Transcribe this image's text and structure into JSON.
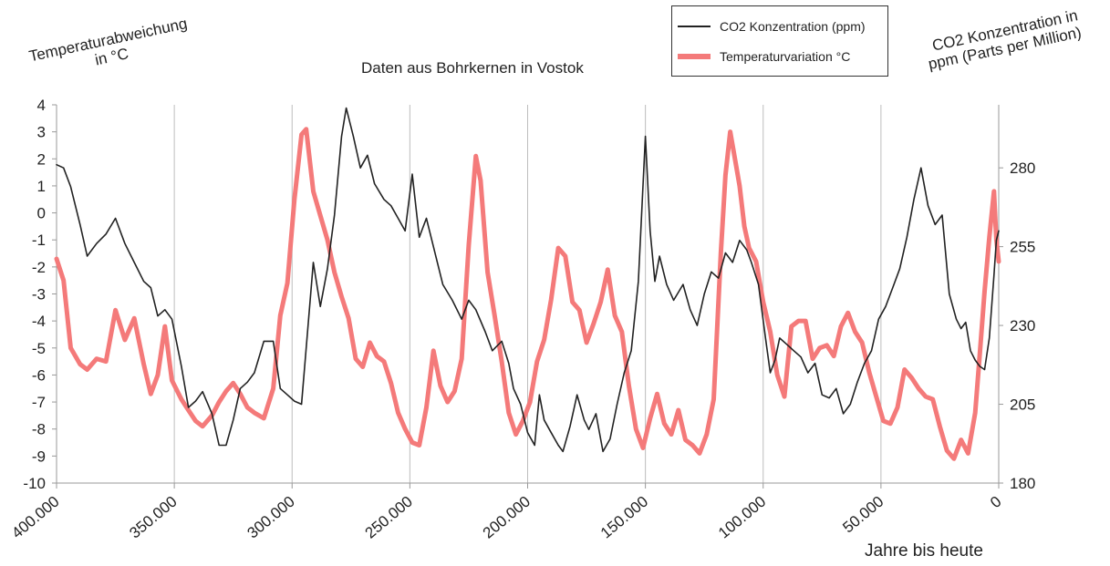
{
  "chart_data": {
    "type": "line",
    "title": "Daten aus Bohrkernen in Vostok",
    "ylabel_left": [
      "Temperaturabweichung",
      "in °C"
    ],
    "ylabel_right": [
      "CO2 Konzentration in",
      "ppm (Parts per Million)"
    ],
    "xlabel": "Jahre bis heute",
    "xlim": [
      400000,
      0
    ],
    "ylim_left": [
      -10,
      4
    ],
    "ylim_right": [
      180,
      300
    ],
    "x_ticks": [
      "400.000",
      "350.000",
      "300.000",
      "250.000",
      "200.000",
      "150.000",
      "100.000",
      "50.000",
      "0"
    ],
    "y_ticks_left": [
      "4",
      "3",
      "2",
      "1",
      "0",
      "-1",
      "-2",
      "-3",
      "-4",
      "-5",
      "-6",
      "-7",
      "-8",
      "-9",
      "-10"
    ],
    "y_ticks_right": [
      "280",
      "255",
      "230",
      "205",
      "180"
    ],
    "grid": true,
    "legend_position": "top-right",
    "series": [
      {
        "name": "CO2 Konzentration (ppm)",
        "axis": "right",
        "color": "#222222",
        "points": [
          [
            400000,
            281
          ],
          [
            397000,
            280
          ],
          [
            394000,
            274
          ],
          [
            390000,
            262
          ],
          [
            387000,
            252
          ],
          [
            383000,
            256
          ],
          [
            379000,
            259
          ],
          [
            375000,
            264
          ],
          [
            371000,
            256
          ],
          [
            367000,
            250
          ],
          [
            363000,
            244
          ],
          [
            360000,
            242
          ],
          [
            357000,
            233
          ],
          [
            354000,
            235
          ],
          [
            351000,
            232
          ],
          [
            347000,
            217
          ],
          [
            344000,
            204
          ],
          [
            341000,
            206
          ],
          [
            338000,
            209
          ],
          [
            334000,
            202
          ],
          [
            331000,
            192
          ],
          [
            328000,
            192
          ],
          [
            325000,
            200
          ],
          [
            322000,
            210
          ],
          [
            319000,
            212
          ],
          [
            316000,
            215
          ],
          [
            312000,
            225
          ],
          [
            308000,
            225
          ],
          [
            305000,
            210
          ],
          [
            302000,
            208
          ],
          [
            299000,
            206
          ],
          [
            296000,
            205
          ],
          [
            291000,
            250
          ],
          [
            288000,
            236
          ],
          [
            285000,
            248
          ],
          [
            282000,
            265
          ],
          [
            279000,
            290
          ],
          [
            277000,
            299
          ],
          [
            274000,
            290
          ],
          [
            271000,
            280
          ],
          [
            268000,
            284
          ],
          [
            265000,
            275
          ],
          [
            261000,
            270
          ],
          [
            258000,
            268
          ],
          [
            255000,
            264
          ],
          [
            252000,
            260
          ],
          [
            249000,
            278
          ],
          [
            246000,
            258
          ],
          [
            243000,
            264
          ],
          [
            240000,
            255
          ],
          [
            236000,
            243
          ],
          [
            232000,
            238
          ],
          [
            228000,
            232
          ],
          [
            225000,
            238
          ],
          [
            222000,
            235
          ],
          [
            218000,
            228
          ],
          [
            215000,
            222
          ],
          [
            211000,
            225
          ],
          [
            208000,
            218
          ],
          [
            206000,
            210
          ],
          [
            203000,
            205
          ],
          [
            200000,
            196
          ],
          [
            197000,
            192
          ],
          [
            195000,
            208
          ],
          [
            193000,
            200
          ],
          [
            190000,
            196
          ],
          [
            187000,
            192
          ],
          [
            185000,
            190
          ],
          [
            182000,
            198
          ],
          [
            179000,
            208
          ],
          [
            176000,
            200
          ],
          [
            174000,
            197
          ],
          [
            171000,
            202
          ],
          [
            168000,
            190
          ],
          [
            165000,
            194
          ],
          [
            162000,
            205
          ],
          [
            159000,
            215
          ],
          [
            156000,
            222
          ],
          [
            153000,
            244
          ],
          [
            150000,
            290
          ],
          [
            148000,
            260
          ],
          [
            146000,
            244
          ],
          [
            144000,
            252
          ],
          [
            141000,
            243
          ],
          [
            138000,
            238
          ],
          [
            134000,
            243
          ],
          [
            131000,
            235
          ],
          [
            128000,
            230
          ],
          [
            125000,
            240
          ],
          [
            122000,
            247
          ],
          [
            119000,
            245
          ],
          [
            116000,
            253
          ],
          [
            113000,
            250
          ],
          [
            110000,
            257
          ],
          [
            107000,
            254
          ],
          [
            105000,
            250
          ],
          [
            102000,
            243
          ],
          [
            99000,
            226
          ],
          [
            97000,
            215
          ],
          [
            95000,
            219
          ],
          [
            93000,
            226
          ],
          [
            90000,
            224
          ],
          [
            87000,
            222
          ],
          [
            84000,
            220
          ],
          [
            81000,
            215
          ],
          [
            78000,
            218
          ],
          [
            75000,
            208
          ],
          [
            72000,
            207
          ],
          [
            69000,
            210
          ],
          [
            66000,
            202
          ],
          [
            63000,
            205
          ],
          [
            60000,
            212
          ],
          [
            57000,
            218
          ],
          [
            54000,
            222
          ],
          [
            51000,
            232
          ],
          [
            48000,
            236
          ],
          [
            45000,
            242
          ],
          [
            42000,
            248
          ],
          [
            39000,
            258
          ],
          [
            36000,
            270
          ],
          [
            33000,
            280
          ],
          [
            30000,
            268
          ],
          [
            27000,
            262
          ],
          [
            24000,
            265
          ],
          [
            21000,
            240
          ],
          [
            18000,
            232
          ],
          [
            16000,
            229
          ],
          [
            14000,
            231
          ],
          [
            12000,
            222
          ],
          [
            10000,
            219
          ],
          [
            8000,
            217
          ],
          [
            6000,
            216
          ],
          [
            4000,
            226
          ],
          [
            2000,
            246
          ],
          [
            1000,
            257
          ],
          [
            0,
            260
          ]
        ]
      },
      {
        "name": "Temperaturvariation °C",
        "axis": "left",
        "color": "#f47a7a",
        "points": [
          [
            400000,
            -1.7
          ],
          [
            397000,
            -2.5
          ],
          [
            394000,
            -5.0
          ],
          [
            390000,
            -5.6
          ],
          [
            387000,
            -5.8
          ],
          [
            383000,
            -5.4
          ],
          [
            379000,
            -5.5
          ],
          [
            375000,
            -3.6
          ],
          [
            371000,
            -4.7
          ],
          [
            367000,
            -3.9
          ],
          [
            363000,
            -5.6
          ],
          [
            360000,
            -6.7
          ],
          [
            357000,
            -6.0
          ],
          [
            354000,
            -4.2
          ],
          [
            351000,
            -6.2
          ],
          [
            347000,
            -6.9
          ],
          [
            344000,
            -7.3
          ],
          [
            341000,
            -7.7
          ],
          [
            338000,
            -7.9
          ],
          [
            334000,
            -7.5
          ],
          [
            331000,
            -7.0
          ],
          [
            328000,
            -6.6
          ],
          [
            325000,
            -6.3
          ],
          [
            322000,
            -6.7
          ],
          [
            319000,
            -7.2
          ],
          [
            316000,
            -7.4
          ],
          [
            312000,
            -7.6
          ],
          [
            308000,
            -6.5
          ],
          [
            305000,
            -3.8
          ],
          [
            302000,
            -2.6
          ],
          [
            299000,
            0.5
          ],
          [
            296000,
            2.9
          ],
          [
            294000,
            3.1
          ],
          [
            291000,
            0.8
          ],
          [
            288000,
            -0.1
          ],
          [
            285000,
            -1.0
          ],
          [
            282000,
            -2.2
          ],
          [
            279000,
            -3.1
          ],
          [
            276000,
            -3.9
          ],
          [
            273000,
            -5.4
          ],
          [
            270000,
            -5.7
          ],
          [
            267000,
            -4.8
          ],
          [
            264000,
            -5.3
          ],
          [
            261000,
            -5.5
          ],
          [
            258000,
            -6.3
          ],
          [
            255000,
            -7.4
          ],
          [
            252000,
            -8.0
          ],
          [
            249000,
            -8.5
          ],
          [
            246000,
            -8.6
          ],
          [
            243000,
            -7.2
          ],
          [
            240000,
            -5.1
          ],
          [
            237000,
            -6.4
          ],
          [
            234000,
            -7.0
          ],
          [
            231000,
            -6.6
          ],
          [
            228000,
            -5.4
          ],
          [
            225000,
            -1.2
          ],
          [
            222000,
            2.1
          ],
          [
            220000,
            1.2
          ],
          [
            217000,
            -2.2
          ],
          [
            214000,
            -3.8
          ],
          [
            211000,
            -5.5
          ],
          [
            208000,
            -7.4
          ],
          [
            205000,
            -8.2
          ],
          [
            202000,
            -7.7
          ],
          [
            199000,
            -7.0
          ],
          [
            196000,
            -5.5
          ],
          [
            193000,
            -4.7
          ],
          [
            190000,
            -3.2
          ],
          [
            187000,
            -1.3
          ],
          [
            184000,
            -1.6
          ],
          [
            181000,
            -3.3
          ],
          [
            178000,
            -3.6
          ],
          [
            175000,
            -4.8
          ],
          [
            172000,
            -4.1
          ],
          [
            169000,
            -3.3
          ],
          [
            166000,
            -2.1
          ],
          [
            163000,
            -3.8
          ],
          [
            160000,
            -4.4
          ],
          [
            157000,
            -6.4
          ],
          [
            154000,
            -8.0
          ],
          [
            151000,
            -8.7
          ],
          [
            148000,
            -7.6
          ],
          [
            145000,
            -6.7
          ],
          [
            142000,
            -7.8
          ],
          [
            139000,
            -8.2
          ],
          [
            136000,
            -7.3
          ],
          [
            133000,
            -8.4
          ],
          [
            130000,
            -8.6
          ],
          [
            127000,
            -8.9
          ],
          [
            124000,
            -8.2
          ],
          [
            121000,
            -6.9
          ],
          [
            118000,
            -1.5
          ],
          [
            116000,
            1.4
          ],
          [
            114000,
            3.0
          ],
          [
            112000,
            2.0
          ],
          [
            110000,
            1.0
          ],
          [
            108000,
            -0.5
          ],
          [
            106000,
            -1.3
          ],
          [
            103000,
            -1.8
          ],
          [
            100000,
            -3.3
          ],
          [
            97000,
            -4.4
          ],
          [
            94000,
            -6.0
          ],
          [
            91000,
            -6.8
          ],
          [
            88000,
            -4.2
          ],
          [
            85000,
            -4.0
          ],
          [
            82000,
            -4.0
          ],
          [
            79000,
            -5.4
          ],
          [
            76000,
            -5.0
          ],
          [
            73000,
            -4.9
          ],
          [
            70000,
            -5.3
          ],
          [
            67000,
            -4.2
          ],
          [
            64000,
            -3.7
          ],
          [
            61000,
            -4.4
          ],
          [
            58000,
            -4.8
          ],
          [
            55000,
            -5.9
          ],
          [
            52000,
            -6.8
          ],
          [
            49000,
            -7.7
          ],
          [
            46000,
            -7.8
          ],
          [
            43000,
            -7.2
          ],
          [
            40000,
            -5.8
          ],
          [
            37000,
            -6.1
          ],
          [
            34000,
            -6.5
          ],
          [
            31000,
            -6.8
          ],
          [
            28000,
            -6.9
          ],
          [
            25000,
            -7.9
          ],
          [
            22000,
            -8.8
          ],
          [
            19000,
            -9.1
          ],
          [
            16000,
            -8.4
          ],
          [
            13000,
            -8.9
          ],
          [
            10000,
            -7.4
          ],
          [
            8000,
            -5.2
          ],
          [
            6000,
            -2.9
          ],
          [
            4000,
            -0.9
          ],
          [
            2000,
            0.8
          ],
          [
            1000,
            -1.0
          ],
          [
            0,
            -1.8
          ]
        ]
      }
    ]
  }
}
